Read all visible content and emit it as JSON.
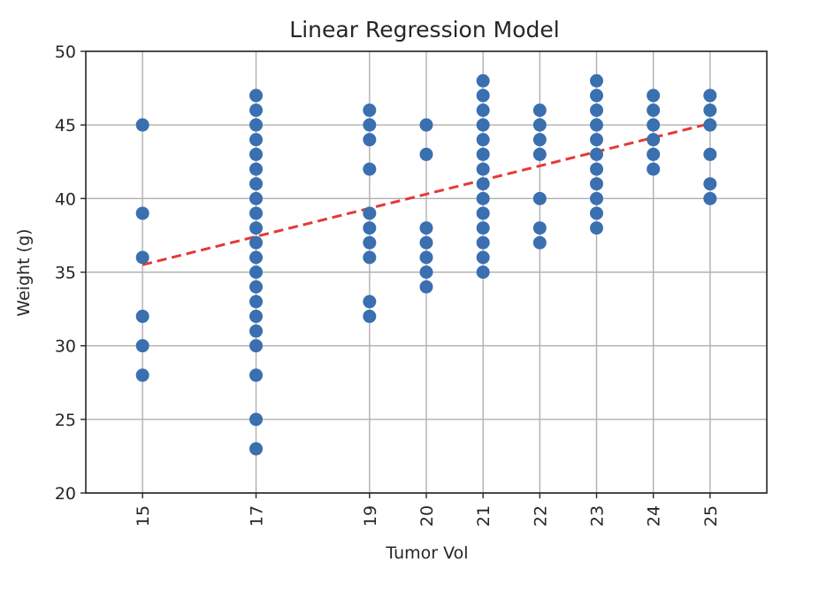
{
  "chart_data": {
    "type": "scatter",
    "title": "Linear Regression Model",
    "xlabel": "Tumor Vol",
    "ylabel": "Weight (g)",
    "xticks": [
      15,
      17,
      19,
      20,
      21,
      22,
      23,
      24,
      25
    ],
    "yticks": [
      20,
      25,
      30,
      35,
      40,
      45,
      50
    ],
    "xlim": [
      14,
      26
    ],
    "ylim": [
      20,
      50
    ],
    "grid": true,
    "colors": {
      "points": "#3a6fb0",
      "line": "#e53935"
    },
    "series": [
      {
        "type": "scatter",
        "points": [
          [
            15,
            45
          ],
          [
            15,
            39
          ],
          [
            15,
            36
          ],
          [
            15,
            32
          ],
          [
            15,
            30
          ],
          [
            15,
            28
          ],
          [
            17,
            47
          ],
          [
            17,
            46
          ],
          [
            17,
            45
          ],
          [
            17,
            44
          ],
          [
            17,
            43
          ],
          [
            17,
            42
          ],
          [
            17,
            41
          ],
          [
            17,
            40
          ],
          [
            17,
            39
          ],
          [
            17,
            38
          ],
          [
            17,
            37
          ],
          [
            17,
            36
          ],
          [
            17,
            35
          ],
          [
            17,
            34
          ],
          [
            17,
            33
          ],
          [
            17,
            32
          ],
          [
            17,
            31
          ],
          [
            17,
            30
          ],
          [
            17,
            28
          ],
          [
            17,
            25
          ],
          [
            17,
            23
          ],
          [
            19,
            46
          ],
          [
            19,
            45
          ],
          [
            19,
            44
          ],
          [
            19,
            42
          ],
          [
            19,
            39
          ],
          [
            19,
            38
          ],
          [
            19,
            37
          ],
          [
            19,
            36
          ],
          [
            19,
            33
          ],
          [
            19,
            32
          ],
          [
            20,
            45
          ],
          [
            20,
            43
          ],
          [
            20,
            38
          ],
          [
            20,
            37
          ],
          [
            20,
            36
          ],
          [
            20,
            35
          ],
          [
            20,
            34
          ],
          [
            21,
            48
          ],
          [
            21,
            47
          ],
          [
            21,
            46
          ],
          [
            21,
            45
          ],
          [
            21,
            44
          ],
          [
            21,
            43
          ],
          [
            21,
            42
          ],
          [
            21,
            41
          ],
          [
            21,
            40
          ],
          [
            21,
            39
          ],
          [
            21,
            38
          ],
          [
            21,
            37
          ],
          [
            21,
            36
          ],
          [
            21,
            35
          ],
          [
            22,
            46
          ],
          [
            22,
            45
          ],
          [
            22,
            44
          ],
          [
            22,
            43
          ],
          [
            22,
            40
          ],
          [
            22,
            38
          ],
          [
            22,
            37
          ],
          [
            23,
            48
          ],
          [
            23,
            47
          ],
          [
            23,
            46
          ],
          [
            23,
            45
          ],
          [
            23,
            44
          ],
          [
            23,
            43
          ],
          [
            23,
            42
          ],
          [
            23,
            41
          ],
          [
            23,
            40
          ],
          [
            23,
            39
          ],
          [
            23,
            38
          ],
          [
            24,
            47
          ],
          [
            24,
            46
          ],
          [
            24,
            45
          ],
          [
            24,
            44
          ],
          [
            24,
            43
          ],
          [
            24,
            42
          ],
          [
            25,
            47
          ],
          [
            25,
            46
          ],
          [
            25,
            45
          ],
          [
            25,
            43
          ],
          [
            25,
            41
          ],
          [
            25,
            40
          ]
        ]
      },
      {
        "type": "line",
        "style": "dashed",
        "x": [
          15,
          25
        ],
        "y": [
          35.5,
          45.1
        ]
      }
    ]
  }
}
